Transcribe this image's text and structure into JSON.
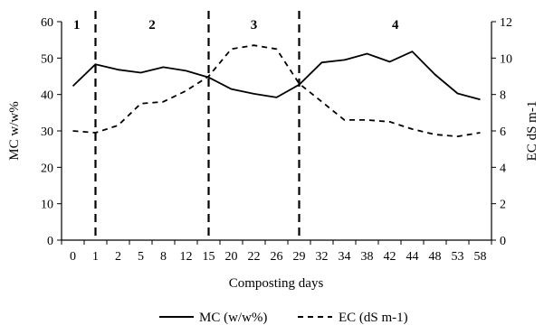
{
  "chart_data": {
    "type": "line",
    "xlabel": "Composting days",
    "ylabel": "MC w/w%",
    "y2label": "EC dS m-1",
    "ylim": [
      0,
      60
    ],
    "y2lim": [
      0,
      12
    ],
    "yticks": [
      "0",
      "10",
      "20",
      "30",
      "40",
      "50",
      "60"
    ],
    "y2ticks": [
      "0",
      "2",
      "4",
      "6",
      "8",
      "10",
      "12"
    ],
    "categories": [
      "0",
      "1",
      "2",
      "5",
      "8",
      "12",
      "15",
      "20",
      "22",
      "26",
      "29",
      "32",
      "34",
      "38",
      "42",
      "44",
      "48",
      "53",
      "58"
    ],
    "series": [
      {
        "name": "MC (w/w%)",
        "axis": "left",
        "style": "solid",
        "values": [
          42.3,
          48.3,
          46.8,
          46.0,
          47.5,
          46.5,
          44.7,
          41.5,
          40.2,
          39.2,
          42.7,
          48.8,
          49.5,
          51.2,
          49.0,
          51.8,
          45.5,
          40.3,
          38.6
        ]
      },
      {
        "name": "EC (dS m-1)",
        "axis": "right",
        "style": "dashed",
        "values": [
          6.0,
          5.9,
          6.3,
          7.5,
          7.6,
          8.2,
          9.0,
          10.5,
          10.7,
          10.5,
          8.6,
          7.6,
          6.6,
          6.6,
          6.5,
          6.1,
          5.8,
          5.7,
          5.9
        ]
      }
    ],
    "phases": [
      {
        "label": "1"
      },
      {
        "label": "2"
      },
      {
        "label": "3"
      },
      {
        "label": "4"
      }
    ],
    "phase_boundaries": [
      "1",
      "15",
      "29"
    ],
    "legend_position": "bottom",
    "grid": false
  }
}
